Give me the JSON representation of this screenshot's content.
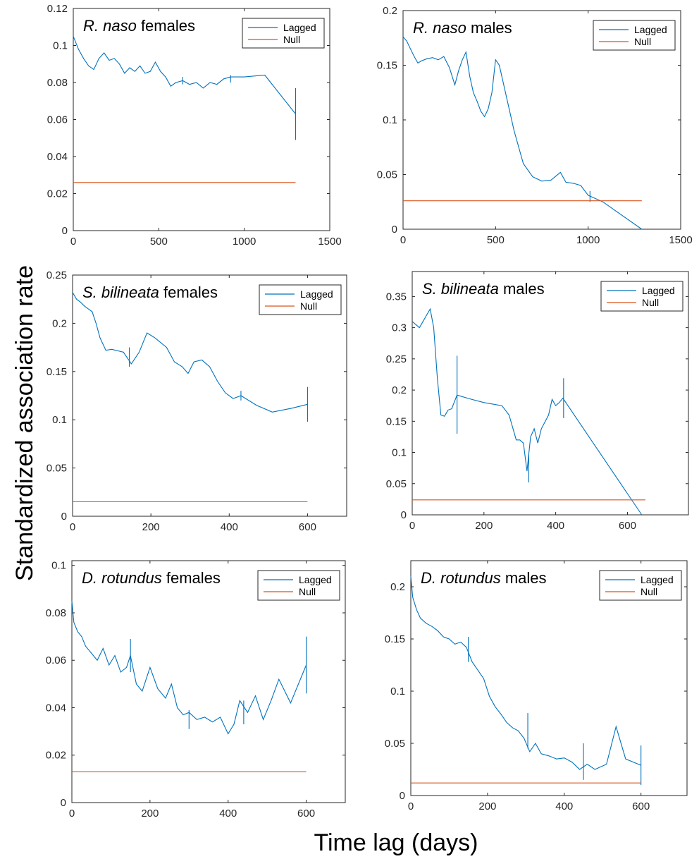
{
  "figure": {
    "ylabel": "Standardized association rate",
    "xlabel": "Time lag (days)"
  },
  "legend": {
    "entries": [
      "Lagged",
      "Null"
    ]
  },
  "colors": {
    "lagged": "#0072BD",
    "null": "#D95319",
    "axis": "#262626"
  },
  "chart_data": [
    {
      "type": "line",
      "title_species": "R. naso",
      "title_rest": " females",
      "xlim": [
        0,
        1500
      ],
      "ylim": [
        0,
        0.12
      ],
      "xticks": [
        0,
        500,
        1000,
        1500
      ],
      "yticks": [
        0,
        0.02,
        0.04,
        0.06,
        0.08,
        0.1,
        0.12
      ],
      "ytick_labels": [
        "0",
        "0.02",
        "0.04",
        "0.06",
        "0.08",
        "0.1",
        "0.12"
      ],
      "legend_position": "top-right",
      "series": [
        {
          "name": "Lagged",
          "x": [
            0,
            30,
            60,
            90,
            120,
            150,
            180,
            210,
            240,
            270,
            300,
            330,
            360,
            390,
            420,
            450,
            480,
            510,
            540,
            570,
            600,
            640,
            680,
            720,
            760,
            800,
            840,
            880,
            920,
            1000,
            1120,
            1300
          ],
          "y": [
            0.105,
            0.098,
            0.093,
            0.089,
            0.087,
            0.093,
            0.096,
            0.092,
            0.093,
            0.09,
            0.085,
            0.088,
            0.086,
            0.089,
            0.085,
            0.086,
            0.091,
            0.086,
            0.083,
            0.078,
            0.08,
            0.081,
            0.079,
            0.08,
            0.077,
            0.08,
            0.079,
            0.082,
            0.083,
            0.083,
            0.084,
            0.063
          ],
          "errorbars": [
            {
              "x": 640,
              "y": 0.081,
              "low": 0.079,
              "high": 0.083
            },
            {
              "x": 920,
              "y": 0.082,
              "low": 0.08,
              "high": 0.084
            },
            {
              "x": 1300,
              "y": 0.063,
              "low": 0.049,
              "high": 0.077
            }
          ]
        },
        {
          "name": "Null",
          "x": [
            0,
            1300
          ],
          "y": [
            0.026,
            0.026
          ]
        }
      ]
    },
    {
      "type": "line",
      "title_species": "R. naso",
      "title_rest": " males",
      "xlim": [
        0,
        1500
      ],
      "ylim": [
        0,
        0.2
      ],
      "xticks": [
        0,
        500,
        1000,
        1500
      ],
      "yticks": [
        0,
        0.05,
        0.1,
        0.15,
        0.2
      ],
      "ytick_labels": [
        "0",
        "0.05",
        "0.1",
        "0.15",
        "0.2"
      ],
      "legend_position": "top-right",
      "series": [
        {
          "name": "Lagged",
          "x": [
            0,
            20,
            40,
            60,
            80,
            100,
            130,
            160,
            190,
            220,
            250,
            280,
            300,
            320,
            340,
            360,
            380,
            400,
            420,
            440,
            460,
            480,
            500,
            520,
            560,
            600,
            650,
            700,
            750,
            800,
            850,
            880,
            920,
            960,
            1000,
            1080,
            1290
          ],
          "y": [
            0.176,
            0.172,
            0.165,
            0.158,
            0.152,
            0.154,
            0.156,
            0.157,
            0.155,
            0.158,
            0.148,
            0.132,
            0.145,
            0.155,
            0.162,
            0.14,
            0.125,
            0.117,
            0.108,
            0.103,
            0.11,
            0.125,
            0.155,
            0.15,
            0.12,
            0.09,
            0.06,
            0.048,
            0.044,
            0.045,
            0.052,
            0.043,
            0.042,
            0.04,
            0.031,
            0.025,
            0.0
          ],
          "errorbars": [
            {
              "x": 1010,
              "y": 0.03,
              "low": 0.025,
              "high": 0.035
            }
          ]
        },
        {
          "name": "Null",
          "x": [
            0,
            1290
          ],
          "y": [
            0.026,
            0.026
          ]
        }
      ]
    },
    {
      "type": "line",
      "title_species": "S. bilineata",
      "title_rest": " females",
      "xlim": [
        0,
        700
      ],
      "ylim": [
        0,
        0.25
      ],
      "xticks": [
        0,
        200,
        400,
        600
      ],
      "yticks": [
        0,
        0.05,
        0.1,
        0.15,
        0.2,
        0.25
      ],
      "ytick_labels": [
        "0",
        "0.05",
        "0.1",
        "0.15",
        "0.2",
        "0.25"
      ],
      "legend_position": "top-right",
      "series": [
        {
          "name": "Lagged",
          "x": [
            0,
            10,
            20,
            30,
            40,
            50,
            60,
            70,
            85,
            100,
            130,
            150,
            170,
            190,
            210,
            240,
            260,
            280,
            295,
            310,
            330,
            350,
            370,
            390,
            410,
            430,
            470,
            510,
            560,
            600
          ],
          "y": [
            0.232,
            0.225,
            0.222,
            0.218,
            0.215,
            0.212,
            0.2,
            0.185,
            0.172,
            0.173,
            0.17,
            0.158,
            0.17,
            0.19,
            0.185,
            0.175,
            0.16,
            0.155,
            0.148,
            0.16,
            0.162,
            0.155,
            0.14,
            0.128,
            0.122,
            0.125,
            0.115,
            0.108,
            0.112,
            0.116
          ],
          "errorbars": [
            {
              "x": 145,
              "y": 0.165,
              "low": 0.155,
              "high": 0.175
            },
            {
              "x": 430,
              "y": 0.125,
              "low": 0.12,
              "high": 0.13
            },
            {
              "x": 600,
              "y": 0.116,
              "low": 0.098,
              "high": 0.134
            }
          ]
        },
        {
          "name": "Null",
          "x": [
            0,
            600
          ],
          "y": [
            0.015,
            0.015
          ]
        }
      ]
    },
    {
      "type": "line",
      "title_species": "S. bilineata",
      "title_rest": " males",
      "xlim": [
        0,
        770
      ],
      "ylim": [
        0,
        0.39
      ],
      "xticks": [
        0,
        200,
        400,
        600
      ],
      "yticks": [
        0,
        0.05,
        0.1,
        0.15,
        0.2,
        0.25,
        0.3,
        0.35
      ],
      "ytick_labels": [
        "0",
        "0.05",
        "0.1",
        "0.15",
        "0.2",
        "0.25",
        "0.3",
        "0.35"
      ],
      "legend_position": "top-right",
      "series": [
        {
          "name": "Lagged",
          "x": [
            0,
            10,
            20,
            30,
            40,
            50,
            60,
            70,
            80,
            90,
            100,
            110,
            125,
            160,
            200,
            250,
            270,
            290,
            300,
            310,
            320,
            330,
            340,
            350,
            360,
            380,
            390,
            400,
            410,
            420,
            640
          ],
          "y": [
            0.31,
            0.305,
            0.3,
            0.31,
            0.32,
            0.33,
            0.3,
            0.22,
            0.16,
            0.158,
            0.168,
            0.17,
            0.192,
            0.186,
            0.18,
            0.175,
            0.16,
            0.12,
            0.12,
            0.115,
            0.07,
            0.125,
            0.138,
            0.115,
            0.138,
            0.16,
            0.185,
            0.175,
            0.18,
            0.187,
            0.0
          ],
          "errorbars": [
            {
              "x": 125,
              "y": 0.192,
              "low": 0.13,
              "high": 0.255
            },
            {
              "x": 325,
              "y": 0.075,
              "low": 0.052,
              "high": 0.098
            },
            {
              "x": 422,
              "y": 0.187,
              "low": 0.155,
              "high": 0.219
            }
          ]
        },
        {
          "name": "Null",
          "x": [
            0,
            650
          ],
          "y": [
            0.024,
            0.024
          ]
        }
      ]
    },
    {
      "type": "line",
      "title_species": "D. rotundus",
      "title_rest": " females",
      "xlim": [
        0,
        700
      ],
      "ylim": [
        0,
        0.102
      ],
      "xticks": [
        0,
        200,
        400,
        600
      ],
      "yticks": [
        0,
        0.02,
        0.04,
        0.06,
        0.08,
        0.1
      ],
      "ytick_labels": [
        "0",
        "0.02",
        "0.04",
        "0.06",
        "0.08",
        "0.1"
      ],
      "legend_position": "top-right",
      "series": [
        {
          "name": "Lagged",
          "x": [
            0,
            5,
            15,
            25,
            35,
            50,
            65,
            80,
            95,
            110,
            125,
            140,
            150,
            165,
            180,
            200,
            220,
            240,
            255,
            270,
            285,
            300,
            320,
            340,
            360,
            380,
            400,
            415,
            430,
            450,
            470,
            490,
            510,
            530,
            560,
            600
          ],
          "y": [
            0.085,
            0.076,
            0.072,
            0.07,
            0.066,
            0.063,
            0.06,
            0.065,
            0.058,
            0.062,
            0.055,
            0.057,
            0.062,
            0.05,
            0.047,
            0.057,
            0.048,
            0.044,
            0.05,
            0.04,
            0.037,
            0.038,
            0.035,
            0.036,
            0.034,
            0.036,
            0.029,
            0.033,
            0.043,
            0.038,
            0.045,
            0.035,
            0.043,
            0.052,
            0.042,
            0.058
          ],
          "errorbars": [
            {
              "x": 150,
              "y": 0.062,
              "low": 0.055,
              "high": 0.069
            },
            {
              "x": 300,
              "y": 0.035,
              "low": 0.031,
              "high": 0.039
            },
            {
              "x": 440,
              "y": 0.038,
              "low": 0.033,
              "high": 0.043
            },
            {
              "x": 600,
              "y": 0.058,
              "low": 0.046,
              "high": 0.07
            }
          ]
        },
        {
          "name": "Null",
          "x": [
            0,
            600
          ],
          "y": [
            0.013,
            0.013
          ]
        }
      ]
    },
    {
      "type": "line",
      "title_species": "D. rotundus",
      "title_rest": " males",
      "xlim": [
        0,
        720
      ],
      "ylim": [
        0,
        0.225
      ],
      "xticks": [
        0,
        200,
        400,
        600
      ],
      "yticks": [
        0,
        0.05,
        0.1,
        0.15,
        0.2
      ],
      "ytick_labels": [
        "0",
        "0.05",
        "0.1",
        "0.15",
        "0.2"
      ],
      "legend_position": "top-right",
      "series": [
        {
          "name": "Lagged",
          "x": [
            0,
            5,
            15,
            25,
            40,
            55,
            70,
            85,
            100,
            115,
            130,
            145,
            160,
            175,
            190,
            205,
            220,
            235,
            250,
            265,
            280,
            295,
            310,
            325,
            340,
            360,
            380,
            400,
            420,
            440,
            460,
            480,
            510,
            535,
            560,
            600
          ],
          "y": [
            0.21,
            0.19,
            0.178,
            0.17,
            0.165,
            0.162,
            0.158,
            0.152,
            0.15,
            0.145,
            0.147,
            0.142,
            0.128,
            0.12,
            0.112,
            0.095,
            0.085,
            0.078,
            0.07,
            0.065,
            0.062,
            0.055,
            0.042,
            0.05,
            0.04,
            0.038,
            0.035,
            0.036,
            0.032,
            0.025,
            0.03,
            0.025,
            0.03,
            0.066,
            0.035,
            0.029
          ],
          "errorbars": [
            {
              "x": 150,
              "y": 0.14,
              "low": 0.128,
              "high": 0.152
            },
            {
              "x": 305,
              "y": 0.062,
              "low": 0.045,
              "high": 0.079
            },
            {
              "x": 450,
              "y": 0.03,
              "low": 0.015,
              "high": 0.05
            },
            {
              "x": 600,
              "y": 0.029,
              "low": 0.01,
              "high": 0.048
            }
          ]
        },
        {
          "name": "Null",
          "x": [
            0,
            600
          ],
          "y": [
            0.012,
            0.012
          ]
        }
      ]
    }
  ]
}
